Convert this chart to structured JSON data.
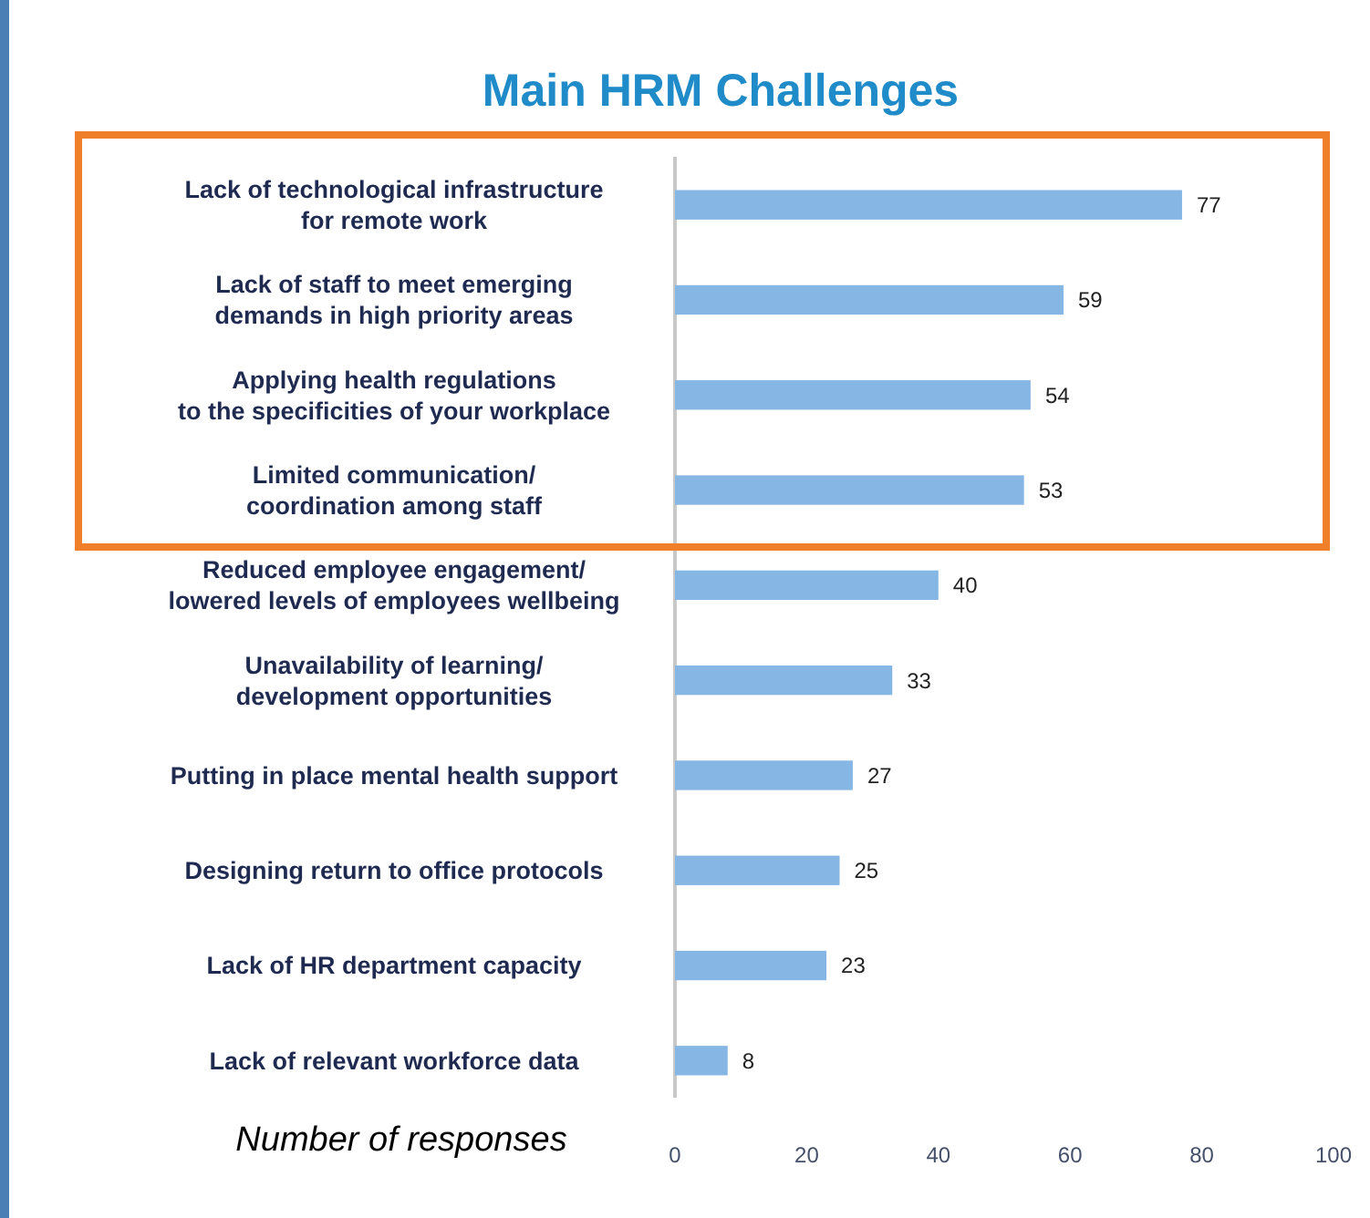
{
  "chart_data": {
    "type": "bar",
    "orientation": "horizontal",
    "title": "Main HRM Challenges",
    "xlabel": "Number of responses",
    "categories": [
      "Lack of technological infrastructure\nfor remote work",
      "Lack of staff to meet emerging\ndemands in high priority areas",
      "Applying health regulations\nto the specificities of your workplace",
      "Limited communication/\ncoordination among staff",
      "Reduced employee engagement/\nlowered levels of employees wellbeing",
      "Unavailability of learning/\ndevelopment opportunities",
      "Putting in place mental health support",
      "Designing return to office protocols",
      "Lack of HR department capacity",
      "Lack of relevant workforce data"
    ],
    "values": [
      77,
      59,
      54,
      53,
      40,
      33,
      27,
      25,
      23,
      8
    ],
    "color": "#86b6e4",
    "data_labels": true,
    "xlim": [
      0,
      100
    ],
    "xticks": [
      0,
      20,
      40,
      60,
      80,
      100
    ],
    "grid": false
  }
}
